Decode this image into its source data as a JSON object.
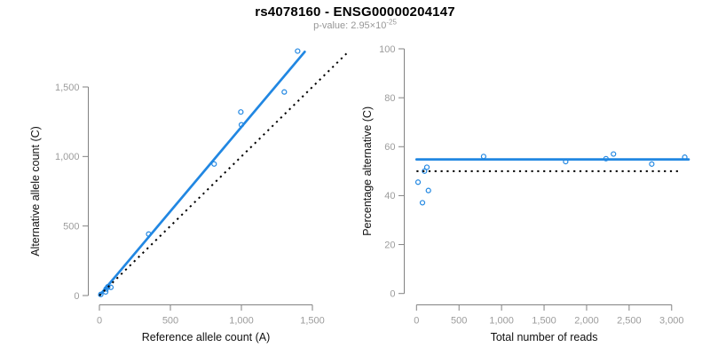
{
  "header": {
    "title": "rs4078160 - ENSG00000204147",
    "subtitle_prefix": "p-value: 2.95×10",
    "subtitle_exponent": "-25"
  },
  "colors": {
    "line_blue": "#2187e2",
    "dotted_black": "#000000",
    "axis_gray": "#828282",
    "tick_label_gray": "#9c9c9c",
    "axis_title_color": "#111111"
  },
  "chart_data": [
    {
      "id": "ref-vs-alt",
      "type": "scatter",
      "xlabel": "Reference allele count (A)",
      "ylabel": "Alternative allele count (C)",
      "xticks": [
        0,
        500,
        1000,
        1500
      ],
      "yticks": [
        0,
        500,
        1000,
        1500
      ],
      "xlim": [
        0,
        1740
      ],
      "ylim": [
        0,
        1770
      ],
      "grid": false,
      "points": [
        [
          10,
          8
        ],
        [
          44,
          26
        ],
        [
          47,
          47
        ],
        [
          59,
          63
        ],
        [
          81,
          59
        ],
        [
          347,
          442
        ],
        [
          808,
          946
        ],
        [
          1000,
          1228
        ],
        [
          996,
          1320
        ],
        [
          1302,
          1464
        ],
        [
          1396,
          1758
        ]
      ],
      "lines": [
        {
          "name": "fitted-line",
          "style": "solid-blue",
          "x1": 0,
          "y1": 0,
          "x2": 1446,
          "y2": 1753
        },
        {
          "name": "identity-line",
          "style": "dotted-black",
          "x1": 0,
          "y1": 0,
          "x2": 1740,
          "y2": 1740
        }
      ]
    },
    {
      "id": "pct-vs-reads",
      "type": "scatter",
      "xlabel": "Total number of reads",
      "ylabel": "Percentage alternative (C)",
      "xticks": [
        0,
        500,
        1000,
        1500,
        2000,
        2500,
        3000
      ],
      "yticks": [
        0,
        20,
        40,
        60,
        80,
        100
      ],
      "xlim": [
        0,
        3240
      ],
      "ylim": [
        0,
        100
      ],
      "grid": false,
      "points": [
        [
          18,
          45.5
        ],
        [
          70,
          37.1
        ],
        [
          94,
          50.0
        ],
        [
          122,
          51.6
        ],
        [
          140,
          42.1
        ],
        [
          789,
          56.0
        ],
        [
          1754,
          53.9
        ],
        [
          2228,
          55.1
        ],
        [
          2316,
          57.0
        ],
        [
          2766,
          52.9
        ],
        [
          3154,
          55.7
        ]
      ],
      "lines": [
        {
          "name": "mean-percentage-line",
          "style": "solid-blue",
          "x1": 0,
          "y1": 54.8,
          "x2": 3200,
          "y2": 54.8
        },
        {
          "name": "expected-50pct-line",
          "style": "dotted-black",
          "x1": 0,
          "y1": 50,
          "x2": 3120,
          "y2": 50
        }
      ]
    }
  ]
}
